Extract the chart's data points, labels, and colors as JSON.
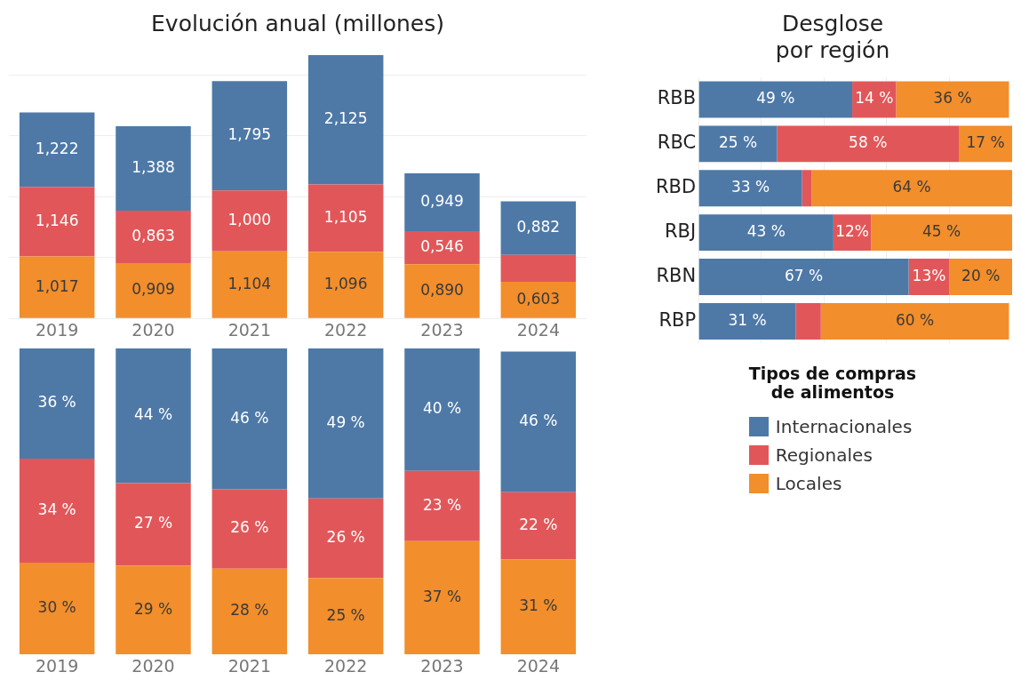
{
  "chart_data": [
    {
      "type": "bar",
      "title": "Evolución anual (millones)",
      "categories": [
        "2019",
        "2020",
        "2021",
        "2022",
        "2023",
        "2024"
      ],
      "stacked": true,
      "ylim": [
        0,
        4.4
      ],
      "yticks": [
        {
          "value": 0,
          "label": null
        },
        {
          "value": 1,
          "label": null
        },
        {
          "value": 2,
          "label": null
        },
        {
          "value": 3,
          "label": null
        },
        {
          "value": 4,
          "label": null
        }
      ],
      "grid": "y",
      "tick_labels": "x",
      "series": [
        {
          "color": "#f28e2b",
          "values": [
            1.017,
            0.909,
            1.104,
            1.096,
            0.89,
            0.603
          ],
          "value_labels": [
            "1,017",
            "0,909",
            "1,104",
            "1,096",
            "0,890",
            "0,603"
          ]
        },
        {
          "color": "#e15759",
          "values": [
            1.146,
            0.863,
            1.0,
            1.105,
            0.546,
            0.44
          ],
          "value_labels": [
            "1,146",
            "0,863",
            "1,000",
            "1,105",
            "0,546",
            null
          ]
        },
        {
          "color": "#4e79a7",
          "values": [
            1.222,
            1.388,
            1.795,
            2.125,
            0.949,
            0.882
          ],
          "value_labels": [
            "1,222",
            "1,388",
            "1,795",
            "2,125",
            "0,949",
            "0,882"
          ]
        }
      ]
    },
    {
      "type": "bar",
      "categories": [
        "2019",
        "2020",
        "2021",
        "2022",
        "2023",
        "2024"
      ],
      "stacked": true,
      "ylim": [
        0,
        100
      ],
      "tick_labels": "x",
      "series": [
        {
          "color": "#f28e2b",
          "values": [
            30,
            29,
            28,
            25,
            37,
            31
          ],
          "value_labels": [
            "30 %",
            "29 %",
            "28 %",
            "25 %",
            "37 %",
            "31 %"
          ]
        },
        {
          "color": "#e15759",
          "values": [
            34,
            27,
            26,
            26,
            23,
            22
          ],
          "value_labels": [
            "34 %",
            "27 %",
            "26 %",
            "26 %",
            "23 %",
            "22 %"
          ]
        },
        {
          "color": "#4e79a7",
          "values": [
            36,
            44,
            46,
            49,
            40,
            46
          ],
          "value_labels": [
            "36 %",
            "44 %",
            "46 %",
            "49 %",
            "40 %",
            "46 %"
          ]
        }
      ]
    },
    {
      "type": "bar",
      "title": "Desglose\npor región",
      "orientation": "horizontal",
      "categories": [
        "RBB",
        "RBC",
        "RBD",
        "RBJ",
        "RBN",
        "RBP"
      ],
      "stacked": true,
      "xlim": [
        0,
        100
      ],
      "xticks": [
        {
          "value": 0,
          "label": null
        },
        {
          "value": 20,
          "label": null
        },
        {
          "value": 40,
          "label": null
        },
        {
          "value": 60,
          "label": null
        },
        {
          "value": 80,
          "label": null
        }
      ],
      "grid": "x",
      "tick_labels": "y",
      "legend": "bottom",
      "legend_title": "Tipos de compras\nde alimentos",
      "series": [
        {
          "name": "Internacionales",
          "color": "#4e79a7",
          "values": [
            49,
            25,
            33,
            43,
            67,
            31
          ],
          "value_labels": [
            "49 %",
            "25 %",
            "33 %",
            "43 %",
            "67 %",
            "31 %"
          ]
        },
        {
          "name": "Regionales",
          "color": "#e15759",
          "values": [
            14,
            58,
            3,
            12,
            13,
            8
          ],
          "value_labels": [
            "14 %",
            "58 %",
            null,
            "12%",
            "13%",
            null
          ]
        },
        {
          "name": "Locales",
          "color": "#f28e2b",
          "values": [
            36,
            17,
            64,
            45,
            20,
            60
          ],
          "value_labels": [
            "36 %",
            "17 %",
            "64 %",
            "45 %",
            "20 %",
            "60 %"
          ]
        }
      ]
    }
  ]
}
